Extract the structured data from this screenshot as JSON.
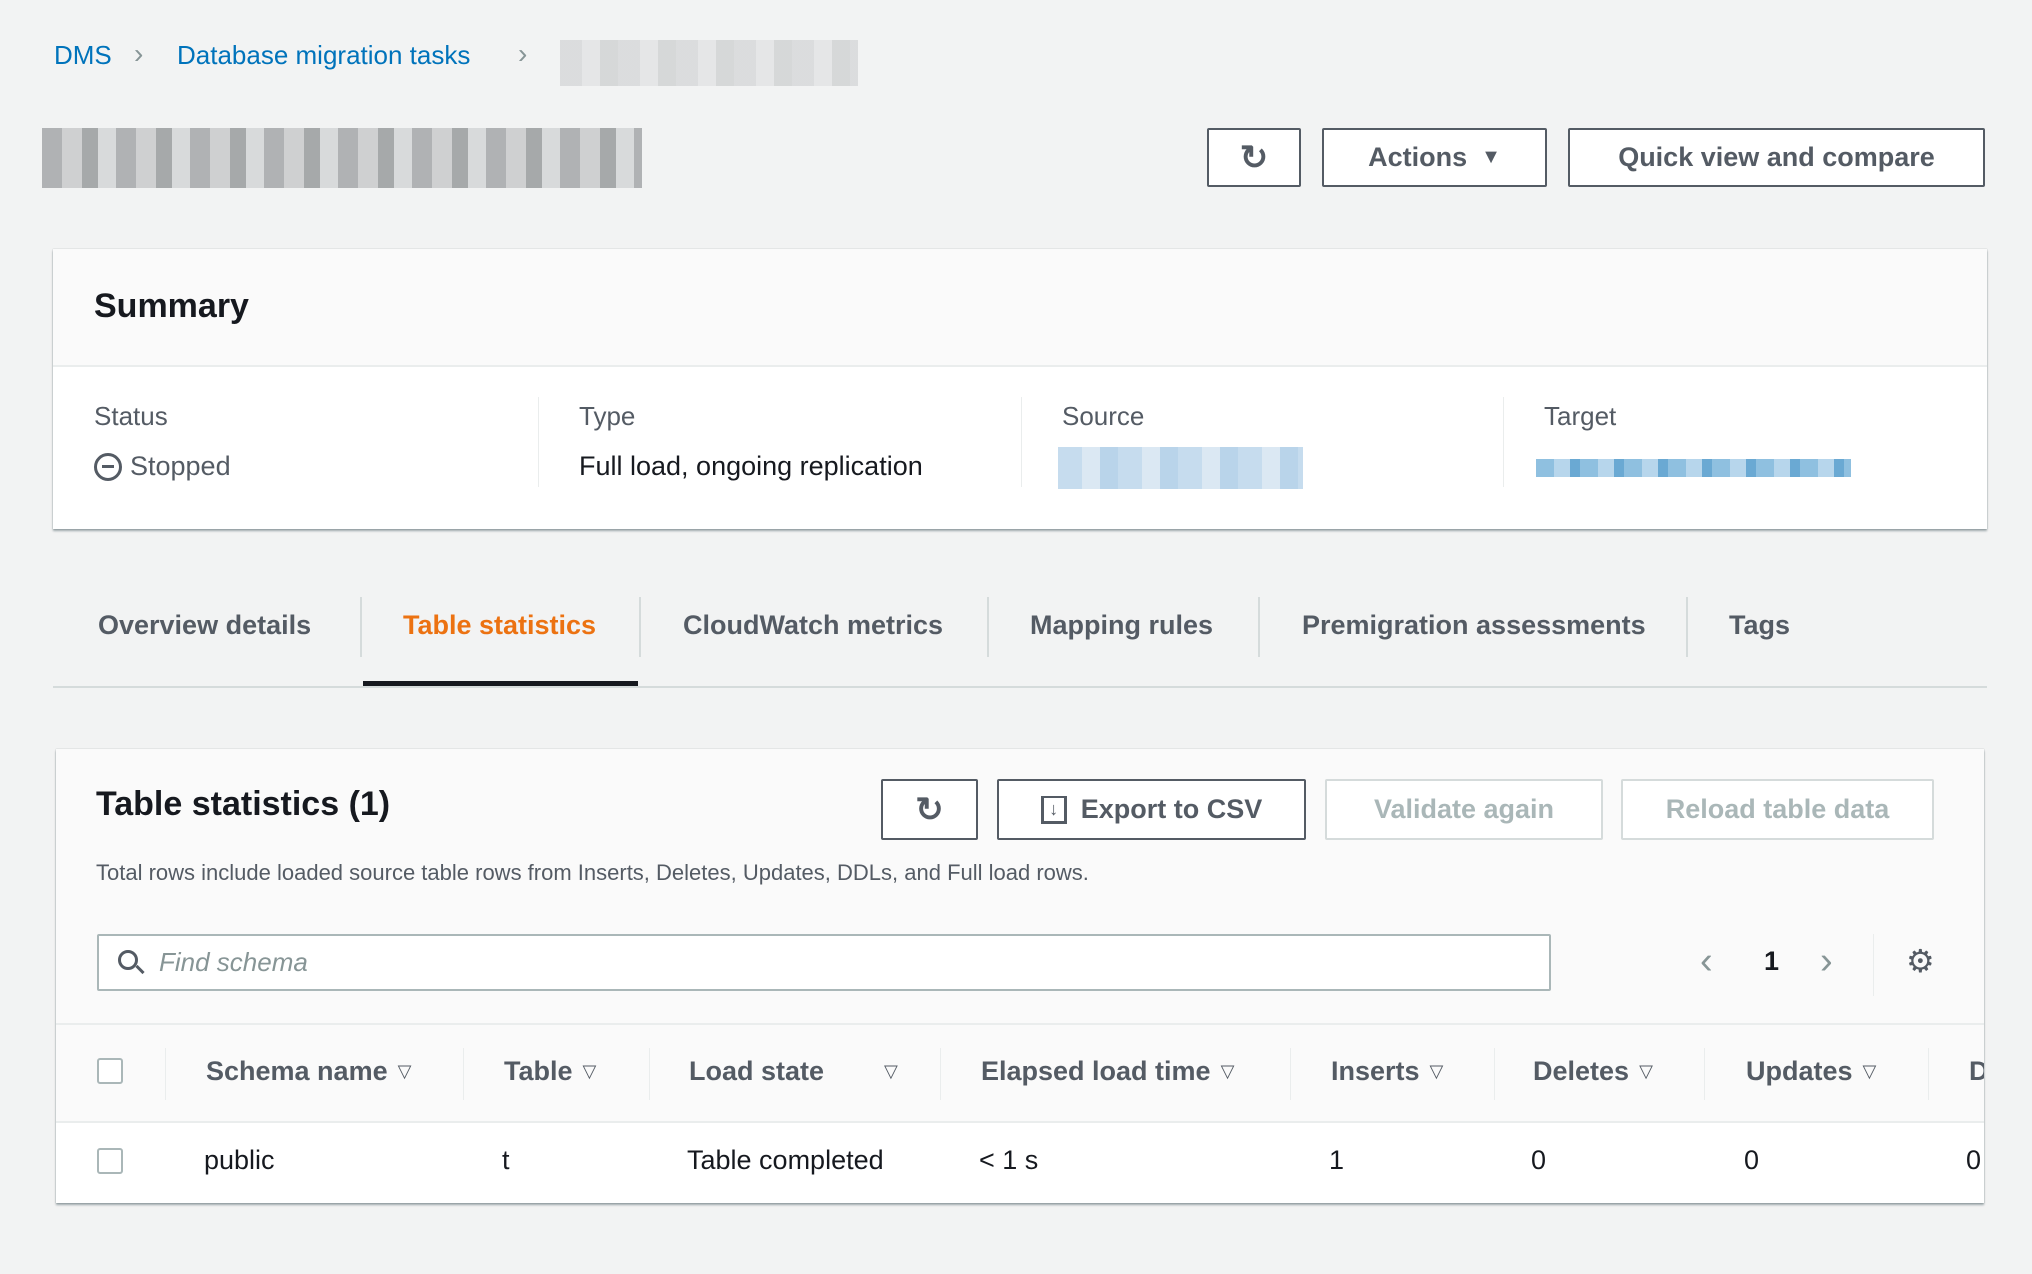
{
  "breadcrumb": {
    "items": [
      "DMS",
      "Database migration tasks"
    ]
  },
  "header": {
    "actions_label": "Actions",
    "quick_view_label": "Quick view and compare"
  },
  "summary": {
    "title": "Summary",
    "status_label": "Status",
    "status_value": "Stopped",
    "type_label": "Type",
    "type_value": "Full load, ongoing replication",
    "source_label": "Source",
    "target_label": "Target"
  },
  "tabs": [
    {
      "label": "Overview details"
    },
    {
      "label": "Table statistics",
      "active": true
    },
    {
      "label": "CloudWatch metrics"
    },
    {
      "label": "Mapping rules"
    },
    {
      "label": "Premigration assessments"
    },
    {
      "label": "Tags"
    }
  ],
  "colors": {
    "accent": "#ec7211",
    "link": "#0073bb",
    "text": "#16191f",
    "muted": "#545b64"
  },
  "stats": {
    "title": "Table statistics (1)",
    "export_label": "Export to CSV",
    "validate_label": "Validate again",
    "reload_label": "Reload table data",
    "description": "Total rows include loaded source table rows from Inserts, Deletes, Updates, DDLs, and Full load rows.",
    "search_placeholder": "Find schema",
    "page": "1",
    "columns": [
      "Schema name",
      "Table",
      "Load state",
      "Elapsed load time",
      "Inserts",
      "Deletes",
      "Updates",
      "D"
    ],
    "rows": [
      [
        "public",
        "t",
        "Table completed",
        "< 1 s",
        "1",
        "0",
        "0",
        "0"
      ]
    ]
  }
}
